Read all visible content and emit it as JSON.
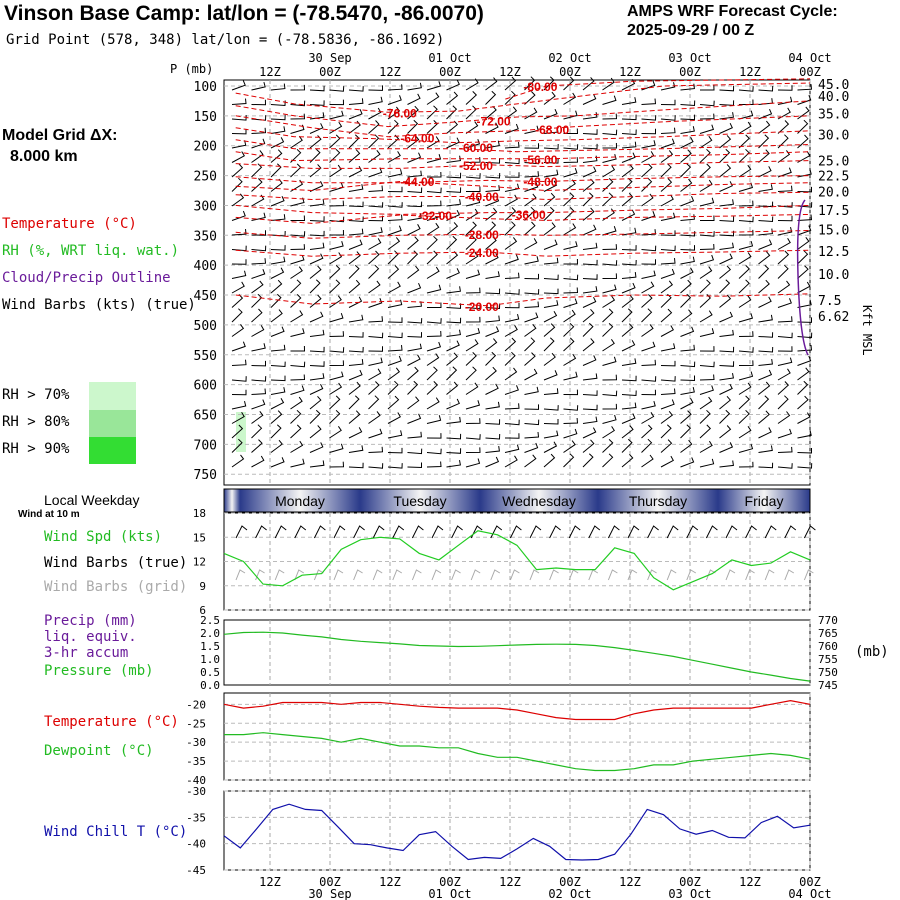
{
  "header": {
    "title": "Vinson Base Camp:  lat/lon = (-78.5470, -86.0070)",
    "grid_point": "Grid Point (578, 348) lat/lon = (-78.5836, -86.1692)",
    "cycle_title": "AMPS WRF Forecast Cycle:",
    "cycle_time": "2025-09-29 / 00  Z",
    "model_grid_label": "Model Grid ΔX:",
    "model_grid_value": "8.000 km"
  },
  "legend": {
    "temperature": "Temperature (°C)",
    "rh": "RH (%, WRT liq. wat.)",
    "cloud": "Cloud/Precip Outline",
    "wind": "Wind Barbs (kts) (true)",
    "rh_levels": [
      "RH > 70%",
      "RH > 80%",
      "RH > 90%"
    ]
  },
  "colors": {
    "temperature": "#dd0000",
    "rh": "#22bb22",
    "cloud": "#6a1b9a",
    "dewpoint": "#22bb22",
    "pressure": "#22bb22",
    "wind_speed": "#22cc22",
    "wind_chill": "#1010aa",
    "rh70": "#ccf7cc",
    "rh80": "#99e699",
    "rh90": "#33dd33",
    "grid_barbs": "#aaaaaa"
  },
  "time_axis": {
    "hour_labels": [
      "12Z",
      "00Z",
      "12Z",
      "00Z",
      "12Z",
      "00Z",
      "12Z",
      "00Z",
      "12Z",
      "00Z"
    ],
    "date_labels": [
      "30 Sep",
      "01 Oct",
      "02 Oct",
      "03 Oct",
      "04 Oct"
    ],
    "weekdays": [
      "Monday",
      "Tuesday",
      "Wednesday",
      "Thursday",
      "Friday"
    ],
    "weekday_title": "Local Weekday",
    "wind_at_10m": "Wind at 10 m"
  },
  "chart_data": [
    {
      "type": "line",
      "id": "cross-section",
      "ylabel": "P (mb)",
      "right_label": "Kft MSL",
      "pressure_ticks": [
        100,
        150,
        200,
        250,
        300,
        350,
        400,
        450,
        500,
        550,
        600,
        650,
        700,
        750
      ],
      "height_ticks": [
        "45.0",
        "40.0",
        "35.0",
        "30.0",
        "25.0",
        "22.5",
        "20.0",
        "17.5",
        "15.0",
        "12.5",
        "10.0",
        "7.5",
        "6.62"
      ],
      "height_tick_pressures": [
        97,
        117,
        146,
        181,
        225,
        250,
        277,
        308,
        340,
        376,
        415,
        458,
        485
      ],
      "isotherms": [
        {
          "label": "-80.00",
          "value": -80,
          "pressure": 100,
          "t": 0.54,
          "points": [
            [
              0.48,
              122
            ],
            [
              0.55,
              100
            ],
            [
              0.7,
              92
            ],
            [
              1.0,
              88
            ]
          ]
        },
        {
          "label": "-76.00",
          "value": -76,
          "pressure": 144,
          "t": 0.3,
          "points": [
            [
              0.02,
              112
            ],
            [
              0.12,
              130
            ],
            [
              0.28,
              144
            ],
            [
              0.4,
              142
            ],
            [
              0.5,
              130
            ],
            [
              0.6,
              118
            ],
            [
              0.75,
              100
            ],
            [
              1.0,
              95
            ]
          ]
        },
        {
          "label": "-72.00",
          "value": -72,
          "pressure": 158,
          "t": 0.46,
          "points": [
            [
              0.02,
              133
            ],
            [
              0.12,
              150
            ],
            [
              0.28,
              168
            ],
            [
              0.4,
              160
            ],
            [
              0.5,
              152
            ],
            [
              0.6,
              150
            ],
            [
              0.75,
              140
            ],
            [
              1.0,
              125
            ]
          ]
        },
        {
          "label": "-68.00",
          "value": -68,
          "pressure": 172,
          "t": 0.56,
          "points": [
            [
              0.02,
              150
            ],
            [
              0.15,
              170
            ],
            [
              0.28,
              185
            ],
            [
              0.4,
              178
            ],
            [
              0.5,
              175
            ],
            [
              0.6,
              168
            ],
            [
              0.75,
              160
            ],
            [
              1.0,
              150
            ]
          ]
        },
        {
          "label": "-64.00",
          "value": -64,
          "pressure": 186,
          "t": 0.33,
          "points": [
            [
              0.02,
              170
            ],
            [
              0.12,
              185
            ],
            [
              0.25,
              188
            ],
            [
              0.4,
              195
            ],
            [
              0.5,
              192
            ],
            [
              0.6,
              190
            ],
            [
              0.75,
              185
            ],
            [
              1.0,
              175
            ]
          ]
        },
        {
          "label": "-60.00",
          "value": -60,
          "pressure": 202,
          "t": 0.43,
          "points": [
            [
              0.02,
              190
            ],
            [
              0.12,
              205
            ],
            [
              0.25,
              205
            ],
            [
              0.4,
              205
            ],
            [
              0.5,
              210
            ],
            [
              0.6,
              208
            ],
            [
              0.75,
              205
            ],
            [
              1.0,
              198
            ]
          ]
        },
        {
          "label": "-56.00",
          "value": -56,
          "pressure": 222,
          "t": 0.54,
          "points": [
            [
              0.02,
              210
            ],
            [
              0.12,
              225
            ],
            [
              0.3,
              222
            ],
            [
              0.45,
              222
            ],
            [
              0.55,
              222
            ],
            [
              0.7,
              218
            ],
            [
              0.85,
              215
            ],
            [
              1.0,
              210
            ]
          ]
        },
        {
          "label": "-52.00",
          "value": -52,
          "pressure": 232,
          "t": 0.43,
          "points": [
            [
              0.02,
              230
            ],
            [
              0.15,
              238
            ],
            [
              0.3,
              238
            ],
            [
              0.45,
              232
            ],
            [
              0.55,
              235
            ],
            [
              0.7,
              232
            ],
            [
              0.85,
              228
            ],
            [
              1.0,
              225
            ]
          ]
        },
        {
          "label": "-48.00",
          "value": -48,
          "pressure": 259,
          "t": 0.54,
          "points": [
            [
              0.02,
              252
            ],
            [
              0.15,
              262
            ],
            [
              0.3,
              262
            ],
            [
              0.45,
              258
            ],
            [
              0.55,
              260
            ],
            [
              0.7,
              255
            ],
            [
              0.85,
              252
            ],
            [
              1.0,
              250
            ]
          ]
        },
        {
          "label": "-44.00",
          "value": -44,
          "pressure": 259,
          "t": 0.33,
          "points": [
            [
              0.02,
              268
            ],
            [
              0.15,
              275
            ],
            [
              0.3,
              260
            ],
            [
              0.45,
              268
            ],
            [
              0.55,
              275
            ],
            [
              0.7,
              270
            ],
            [
              0.85,
              265
            ],
            [
              1.0,
              262
            ]
          ]
        },
        {
          "label": "-40.00",
          "value": -40,
          "pressure": 284,
          "t": 0.44,
          "points": [
            [
              0.02,
              282
            ],
            [
              0.15,
              290
            ],
            [
              0.3,
              285
            ],
            [
              0.45,
              285
            ],
            [
              0.55,
              290
            ],
            [
              0.7,
              285
            ],
            [
              0.85,
              280
            ],
            [
              1.0,
              278
            ]
          ]
        },
        {
          "label": "-36.00",
          "value": -36,
          "pressure": 314,
          "t": 0.52,
          "points": [
            [
              0.02,
              300
            ],
            [
              0.15,
              312
            ],
            [
              0.3,
              315
            ],
            [
              0.45,
              312
            ],
            [
              0.55,
              312
            ],
            [
              0.7,
              308
            ],
            [
              0.85,
              305
            ],
            [
              1.0,
              300
            ]
          ]
        },
        {
          "label": "-32.00",
          "value": -32,
          "pressure": 316,
          "t": 0.36,
          "points": [
            [
              0.02,
              320
            ],
            [
              0.15,
              330
            ],
            [
              0.3,
              316
            ],
            [
              0.45,
              322
            ],
            [
              0.55,
              325
            ],
            [
              0.7,
              320
            ],
            [
              0.85,
              318
            ],
            [
              1.0,
              315
            ]
          ]
        },
        {
          "label": "-28.00",
          "value": -28,
          "pressure": 348,
          "t": 0.44,
          "points": [
            [
              0.02,
              345
            ],
            [
              0.15,
              355
            ],
            [
              0.3,
              350
            ],
            [
              0.45,
              348
            ],
            [
              0.55,
              350
            ],
            [
              0.7,
              348
            ],
            [
              0.85,
              345
            ],
            [
              1.0,
              342
            ]
          ]
        },
        {
          "label": "-24.00",
          "value": -24,
          "pressure": 378,
          "t": 0.44,
          "points": [
            [
              0.02,
              375
            ],
            [
              0.15,
              385
            ],
            [
              0.3,
              380
            ],
            [
              0.45,
              378
            ],
            [
              0.55,
              385
            ],
            [
              0.7,
              380
            ],
            [
              0.85,
              378
            ],
            [
              1.0,
              375
            ]
          ]
        },
        {
          "label": "-20.00",
          "value": -20,
          "pressure": 468,
          "t": 0.44,
          "points": [
            [
              0.02,
              450
            ],
            [
              0.15,
              465
            ],
            [
              0.3,
              460
            ],
            [
              0.45,
              468
            ],
            [
              0.55,
              455
            ],
            [
              0.7,
              450
            ],
            [
              0.85,
              452
            ],
            [
              1.0,
              448
            ]
          ]
        }
      ]
    },
    {
      "type": "line",
      "id": "wind-speed",
      "series_label": "Wind Spd (kts)",
      "barbs_true_label": "Wind Barbs (true)",
      "barbs_grid_label": "Wind Barbs (grid)",
      "yticks": [
        18,
        15,
        12,
        9,
        6
      ],
      "ylim": [
        6,
        18
      ],
      "values": [
        13.0,
        12.0,
        9.2,
        9.0,
        10.3,
        10.5,
        13.5,
        14.7,
        15.0,
        14.8,
        13.0,
        12.2,
        14.0,
        15.8,
        15.3,
        14.0,
        11.0,
        11.2,
        11.0,
        11.0,
        13.7,
        13.0,
        10.0,
        8.5,
        9.5,
        10.5,
        12.2,
        11.5,
        11.8,
        13.2,
        12.2
      ]
    },
    {
      "type": "line",
      "id": "pressure",
      "precip_label": "Precip (mm)",
      "precip_sub1": "liq. equiv.",
      "precip_sub2": "3-hr accum",
      "series_label": "Pressure (mb)",
      "right_unit": "(mb)",
      "left_ticks": [
        "2.5",
        "2.0",
        "1.5",
        "1.0",
        "0.5",
        "0.0"
      ],
      "left_tick_values": [
        2.5,
        2.0,
        1.5,
        1.0,
        0.5,
        0.0
      ],
      "right_ticks": [
        "770",
        "765",
        "760",
        "755",
        "750",
        "745"
      ],
      "right_tick_values": [
        770,
        765,
        760,
        755,
        750,
        745
      ],
      "ylim": [
        745,
        770
      ],
      "values": [
        764.5,
        765.2,
        765.3,
        765.0,
        764.2,
        763.5,
        762.5,
        761.8,
        761.3,
        760.8,
        760.2,
        760.0,
        759.8,
        759.9,
        760.1,
        760.4,
        760.6,
        760.7,
        760.6,
        760.2,
        759.4,
        758.3,
        757.2,
        756.0,
        754.5,
        753.0,
        751.5,
        750.0,
        748.8,
        747.5,
        746.5
      ]
    },
    {
      "type": "line",
      "id": "temperature",
      "temp_label": "Temperature (°C)",
      "dew_label": "Dewpoint (°C)",
      "yticks": [
        -20,
        -25,
        -30,
        -35,
        -40
      ],
      "ylim": [
        -40,
        -17
      ],
      "temperature": [
        -20.0,
        -21.0,
        -20.5,
        -19.5,
        -19.5,
        -19.5,
        -20.0,
        -19.5,
        -19.5,
        -20.0,
        -20.5,
        -20.8,
        -21.0,
        -21.0,
        -21.0,
        -21.5,
        -22.5,
        -23.5,
        -24.0,
        -24.0,
        -24.0,
        -22.5,
        -21.5,
        -21.0,
        -21.0,
        -21.0,
        -21.0,
        -21.0,
        -20.0,
        -19.0,
        -20.0
      ],
      "dewpoint": [
        -28.0,
        -28.0,
        -27.5,
        -28.0,
        -28.5,
        -29.0,
        -30.0,
        -29.0,
        -30.0,
        -31.0,
        -31.0,
        -31.5,
        -31.5,
        -33.0,
        -34.0,
        -34.0,
        -35.0,
        -36.0,
        -37.0,
        -37.5,
        -37.5,
        -37.0,
        -36.0,
        -36.0,
        -35.0,
        -34.5,
        -34.0,
        -33.5,
        -33.0,
        -33.5,
        -34.5
      ]
    },
    {
      "type": "line",
      "id": "wind-chill",
      "series_label": "Wind Chill T (°C)",
      "yticks": [
        -30,
        -35,
        -40,
        -45
      ],
      "ylim": [
        -45,
        -30
      ],
      "values": [
        -38.5,
        -40.8,
        -37.2,
        -33.5,
        -32.5,
        -33.5,
        -33.7,
        -36.8,
        -40.0,
        -40.2,
        -40.8,
        -41.3,
        -38.3,
        -37.7,
        -40.5,
        -43.0,
        -42.6,
        -42.8,
        -41.0,
        -39.0,
        -40.5,
        -43.0,
        -43.1,
        -43.0,
        -42.0,
        -38.2,
        -33.5,
        -34.5,
        -37.2,
        -38.2,
        -37.5,
        -38.8,
        -38.9,
        -36.0,
        -34.8,
        -37.0,
        -36.5
      ]
    }
  ]
}
